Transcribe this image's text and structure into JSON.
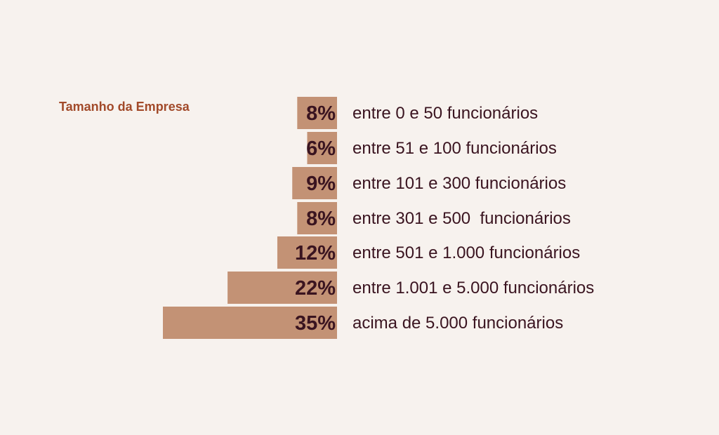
{
  "chart_data": {
    "type": "bar",
    "orientation": "horizontal",
    "title": "Tamanho da Empresa",
    "categories": [
      "entre 0 e 50 funcionários",
      "entre 51 e 100 funcionários",
      "entre 101 e 300 funcionários",
      "entre 301 e 500  funcionários",
      "entre 501 e 1.000 funcionários",
      "entre 1.001 e 5.000 funcionários",
      "acima de 5.000 funcionários"
    ],
    "values": [
      8,
      6,
      9,
      8,
      12,
      22,
      35
    ],
    "value_labels": [
      "8%",
      "6%",
      "9%",
      "8%",
      "12%",
      "22%",
      "35%"
    ],
    "unit": "%",
    "grid": false,
    "legend": "none"
  },
  "colors": {
    "background": "#f7f2ee",
    "bar": "#c39275",
    "value_text": "#3a1420",
    "category_text": "#3a1420",
    "title": "#a24a2a"
  }
}
